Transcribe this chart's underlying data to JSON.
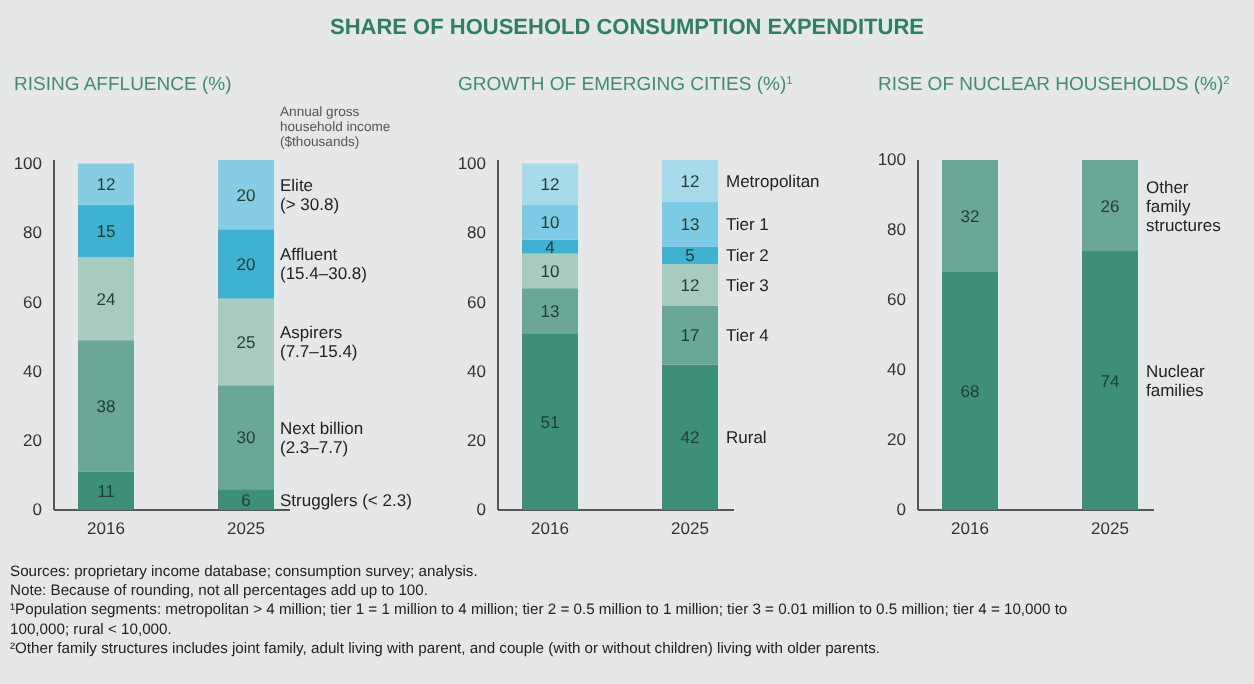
{
  "chart_data": [
    {
      "type": "other",
      "title": "SHARE OF HOUSEHOLD CONSUMPTION EXPENDITURE",
      "annotations": [
        "Sources: proprietary income database; consumption survey; analysis.",
        "Note: Because of rounding, not all percentages add up to 100.",
        "¹Population segments: metropolitan > 4 million; tier 1 = 1 million to 4 million; tier 2 = 0.5 million to 1 million; tier 3 = 0.01 million to 0.5 million; tier 4 = 10,000 to 100,000; rural < 10,000.",
        "²Other family structures includes joint family, adult living with parent, and couple (with or without children) living with older parents."
      ]
    },
    {
      "type": "bar",
      "stacked": true,
      "data_labels": true,
      "title": "RISING AFFLUENCE (%)",
      "legend_title": "Annual gross\nhousehold income\n($thousands)",
      "categories": [
        "2016",
        "2025"
      ],
      "ylim": [
        0,
        101
      ],
      "yticks": [
        0,
        20,
        40,
        60,
        80,
        100
      ],
      "series": [
        {
          "name": "Strugglers (< 2.3)",
          "color": "#3d8f77",
          "values": [
            11,
            6
          ]
        },
        {
          "name": "Next billion\n(2.3–7.7)",
          "color": "#6ba796",
          "values": [
            38,
            30
          ]
        },
        {
          "name": "Aspirers\n(7.7–15.4)",
          "color": "#a9cbbf",
          "values": [
            24,
            25
          ]
        },
        {
          "name": "Affluent\n(15.4–30.8)",
          "color": "#40b2d1",
          "values": [
            15,
            20
          ]
        },
        {
          "name": "Elite\n(> 30.8)",
          "color": "#86cde4",
          "values": [
            12,
            20
          ]
        }
      ]
    },
    {
      "type": "bar",
      "stacked": true,
      "data_labels": true,
      "title": "GROWTH OF EMERGING CITIES (%)$^{1}$",
      "categories": [
        "2016",
        "2025"
      ],
      "ylim": [
        0,
        101
      ],
      "yticks": [
        0,
        20,
        40,
        60,
        80,
        100
      ],
      "series": [
        {
          "name": "Rural",
          "color": "#3d8f77",
          "values": [
            51,
            42
          ]
        },
        {
          "name": "Tier 4",
          "color": "#6ba796",
          "values": [
            13,
            17
          ]
        },
        {
          "name": "Tier 3",
          "color": "#a9cbbf",
          "values": [
            10,
            12
          ]
        },
        {
          "name": "Tier 2",
          "color": "#40b2d1",
          "values": [
            4,
            5
          ]
        },
        {
          "name": "Tier 1",
          "color": "#7ccae3",
          "values": [
            10,
            13
          ]
        },
        {
          "name": "Metropolitan",
          "color": "#a8dbea",
          "values": [
            12,
            12
          ]
        }
      ]
    },
    {
      "type": "bar",
      "stacked": true,
      "data_labels": true,
      "title": "RISE OF NUCLEAR HOUSEHOLDS (%)$^{2}$",
      "categories": [
        "2016",
        "2025"
      ],
      "ylim": [
        0,
        100
      ],
      "yticks": [
        0,
        20,
        40,
        60,
        80,
        100
      ],
      "series": [
        {
          "name": "Nuclear\nfamilies",
          "color": "#3d8f77",
          "values": [
            68,
            74
          ]
        },
        {
          "name": "Other\nfamily\nstructures",
          "color": "#6ba796",
          "values": [
            32,
            26
          ]
        }
      ]
    }
  ]
}
